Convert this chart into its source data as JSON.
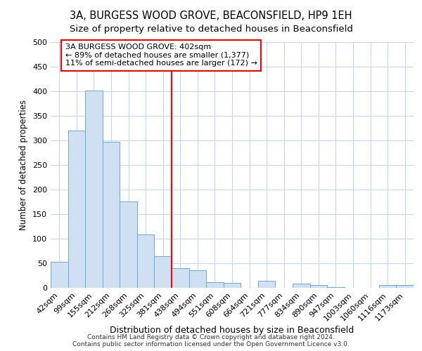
{
  "title1": "3A, BURGESS WOOD GROVE, BEACONSFIELD, HP9 1EH",
  "title2": "Size of property relative to detached houses in Beaconsfield",
  "xlabel": "Distribution of detached houses by size in Beaconsfield",
  "ylabel": "Number of detached properties",
  "footer": "Contains HM Land Registry data © Crown copyright and database right 2024.\nContains public sector information licensed under the Open Government Licence v3.0.",
  "categories": [
    "42sqm",
    "99sqm",
    "155sqm",
    "212sqm",
    "268sqm",
    "325sqm",
    "381sqm",
    "438sqm",
    "494sqm",
    "551sqm",
    "608sqm",
    "664sqm",
    "721sqm",
    "777sqm",
    "834sqm",
    "890sqm",
    "947sqm",
    "1003sqm",
    "1060sqm",
    "1116sqm",
    "1173sqm"
  ],
  "values": [
    53,
    320,
    402,
    297,
    176,
    108,
    65,
    40,
    36,
    11,
    10,
    0,
    15,
    0,
    9,
    6,
    2,
    0,
    0,
    6,
    6
  ],
  "bar_color": "#cfe0f3",
  "bar_edge_color": "#6aaad4",
  "property_line_x": 6.5,
  "annotation_text_line1": "3A BURGESS WOOD GROVE: 402sqm",
  "annotation_text_line2": "← 89% of detached houses are smaller (1,377)",
  "annotation_text_line3": "11% of semi-detached houses are larger (172) →",
  "ylim": [
    0,
    500
  ],
  "yticks": [
    0,
    50,
    100,
    150,
    200,
    250,
    300,
    350,
    400,
    450,
    500
  ],
  "bg_color": "#ffffff",
  "grid_color": "#c8d4e8",
  "title1_fontsize": 10.5,
  "title2_fontsize": 9.5,
  "xlabel_fontsize": 9,
  "ylabel_fontsize": 8.5,
  "tick_fontsize": 8,
  "annotation_fontsize": 8
}
